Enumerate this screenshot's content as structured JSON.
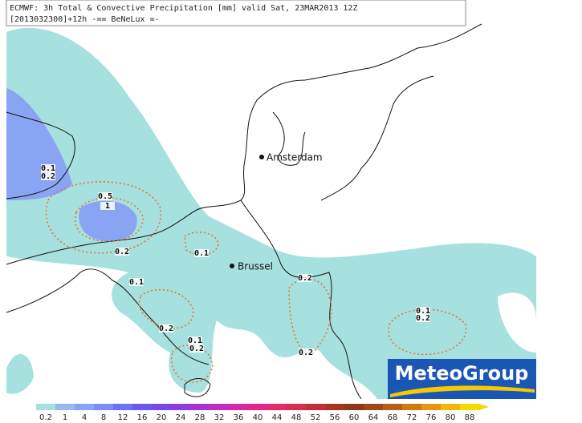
{
  "header": {
    "line1": "ECMWF: 3h Total & Convective Precipitation [mm] valid Sat, 23MAR2013 12Z",
    "line2": "[2013032300]+12h -== BeNeLux =-"
  },
  "cities": [
    {
      "name": "Amsterdam"
    },
    {
      "name": "Brussel"
    }
  ],
  "contour_labels": [
    "0.1",
    "0.2",
    "0.5",
    "1",
    "0.2",
    "0.1",
    "0.1",
    "0.2",
    "0.1",
    "0.2",
    "0.2",
    "0.2",
    "0.1",
    "0.2"
  ],
  "logo": "MeteoGroup",
  "legend": {
    "ticks": [
      0.2,
      1,
      4,
      8,
      12,
      16,
      20,
      24,
      28,
      32,
      36,
      40,
      44,
      48,
      52,
      56,
      60,
      64,
      68,
      72,
      76,
      80,
      88
    ],
    "colors": [
      "#a6e0df",
      "#9ab8f0",
      "#8aa4f4",
      "#7b8cf6",
      "#6d72f4",
      "#6a5af0",
      "#7a48e6",
      "#8e3cdc",
      "#a632d0",
      "#c02cbe",
      "#d628a6",
      "#e4268a",
      "#e62a6e",
      "#d82c52",
      "#c42e3a",
      "#a83224",
      "#90381c",
      "#9c4a18",
      "#b66014",
      "#d07a10",
      "#e6960c",
      "#f2b808",
      "#f6d804"
    ]
  }
}
